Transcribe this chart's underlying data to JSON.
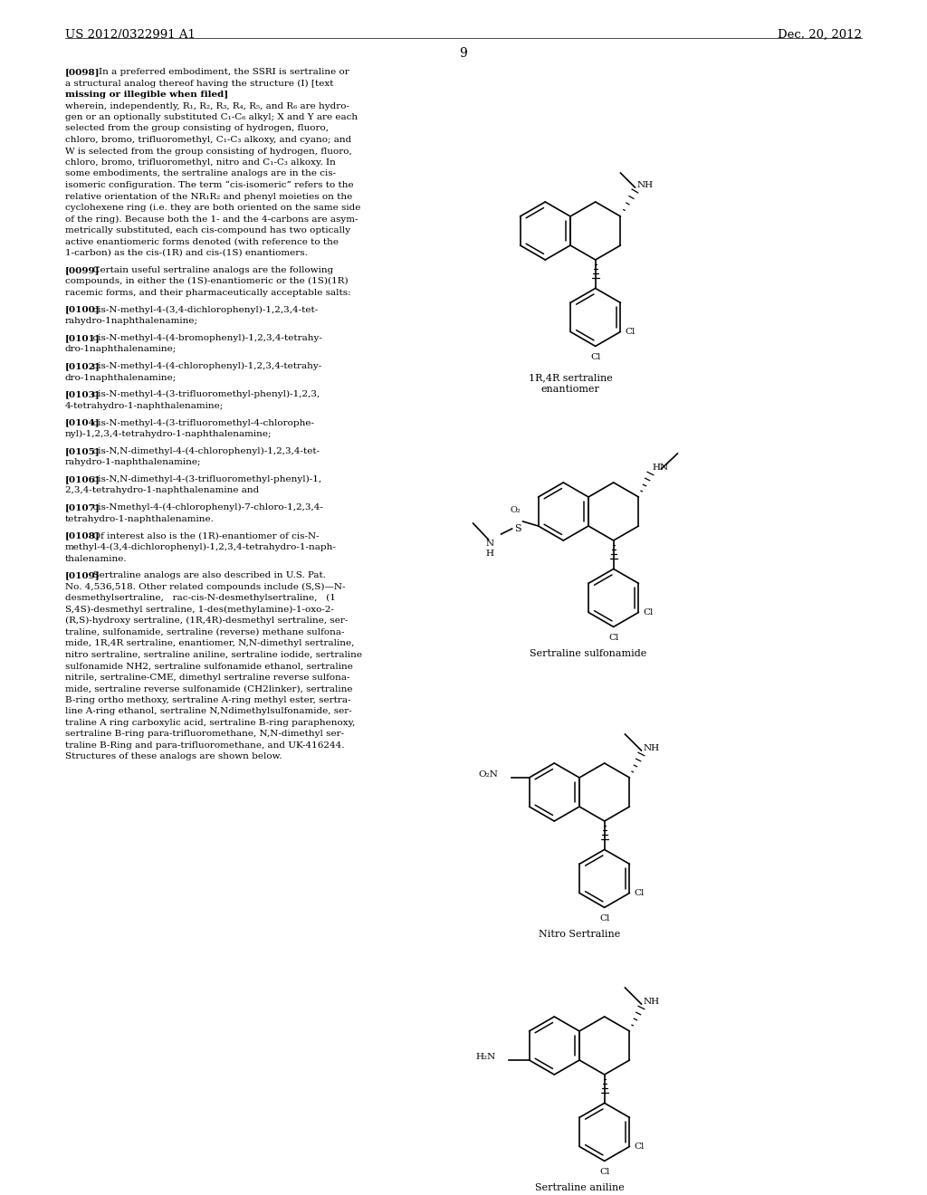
{
  "header_left": "US 2012/0322991 A1",
  "header_right": "Dec. 20, 2012",
  "page_number": "9",
  "background_color": "#ffffff",
  "text_color": "#000000",
  "font_size_body": 7.5,
  "font_size_tag": 7.5,
  "molecule_labels": [
    "1R,4R sertraline\nenantiomer",
    "Sertraline sulfonamide",
    "Nitro Sertraline",
    "Sertraline aniline"
  ]
}
